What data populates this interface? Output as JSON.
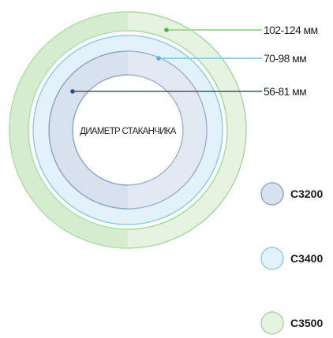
{
  "center_label": "ДИАМЕТР СТАКАНЧИКА",
  "rings": [
    {
      "key": "c3500",
      "range": "102-124 мм",
      "color": "#a8d8a0",
      "fill": "#e6f3e1"
    },
    {
      "key": "c3400",
      "range": "70-98 мм",
      "color": "#93cce6",
      "fill": "#e3f2fa"
    },
    {
      "key": "c3200",
      "range": "56-81 мм",
      "color": "#8fa8c8",
      "fill": "#d8e1ee"
    }
  ],
  "legend": [
    {
      "label": "C3200",
      "color": "#8fa8c8",
      "fill": "#d8e1ee"
    },
    {
      "label": "C3400",
      "color": "#93cce6",
      "fill": "#e3f2fa"
    },
    {
      "label": "C3500",
      "color": "#a8d8a0",
      "fill": "#e6f3e1"
    }
  ],
  "colors": {
    "green_leader": "#a8d8a0",
    "green_dot": "#4caf50",
    "blue_leader": "#93cce6",
    "blue_dot": "#4fb3e6",
    "navy_leader": "#2a5d8a",
    "navy_dot": "#1f5280"
  }
}
